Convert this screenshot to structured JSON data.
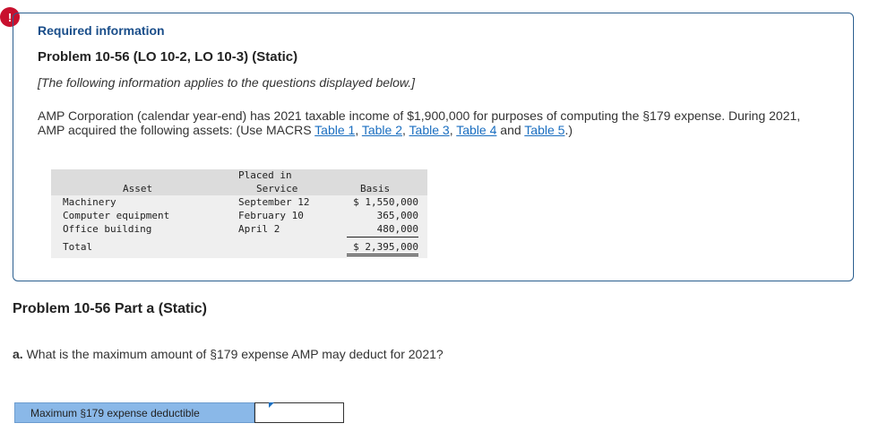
{
  "alert": {
    "symbol": "!"
  },
  "required_info": "Required information",
  "problem_title": "Problem 10-56 (LO 10-2, LO 10-3) (Static)",
  "note": "[The following information applies to the questions displayed below.]",
  "body": {
    "text_before_links": "AMP Corporation (calendar year-end) has 2021 taxable income of $1,900,000 for purposes of computing the §179 expense. During 2021, AMP acquired the following assets: (Use MACRS ",
    "links": [
      "Table 1",
      "Table 2",
      "Table 3",
      "Table 4",
      "Table 5"
    ],
    "sep1": ", ",
    "sep2": ", ",
    "sep3": ", ",
    "sep4": " and ",
    "text_after_links": ".)"
  },
  "asset_table": {
    "headers": {
      "asset": "Asset",
      "placed_line1": "Placed in",
      "placed_line2": "Service",
      "basis": "Basis"
    },
    "rows": [
      {
        "asset": "Machinery",
        "placed": "September 12",
        "basis": "$ 1,550,000"
      },
      {
        "asset": "Computer equipment",
        "placed": "February 10",
        "basis": "365,000"
      },
      {
        "asset": "Office building",
        "placed": "April 2",
        "basis": "480,000"
      }
    ],
    "total": {
      "label": "Total",
      "basis": "$ 2,395,000"
    }
  },
  "part_title": "Problem 10-56 Part a (Static)",
  "question": {
    "letter": "a.",
    "text": " What is the maximum amount of §179 expense AMP may deduct for 2021?"
  },
  "answer": {
    "label": "Maximum §179 expense deductible",
    "value": ""
  }
}
